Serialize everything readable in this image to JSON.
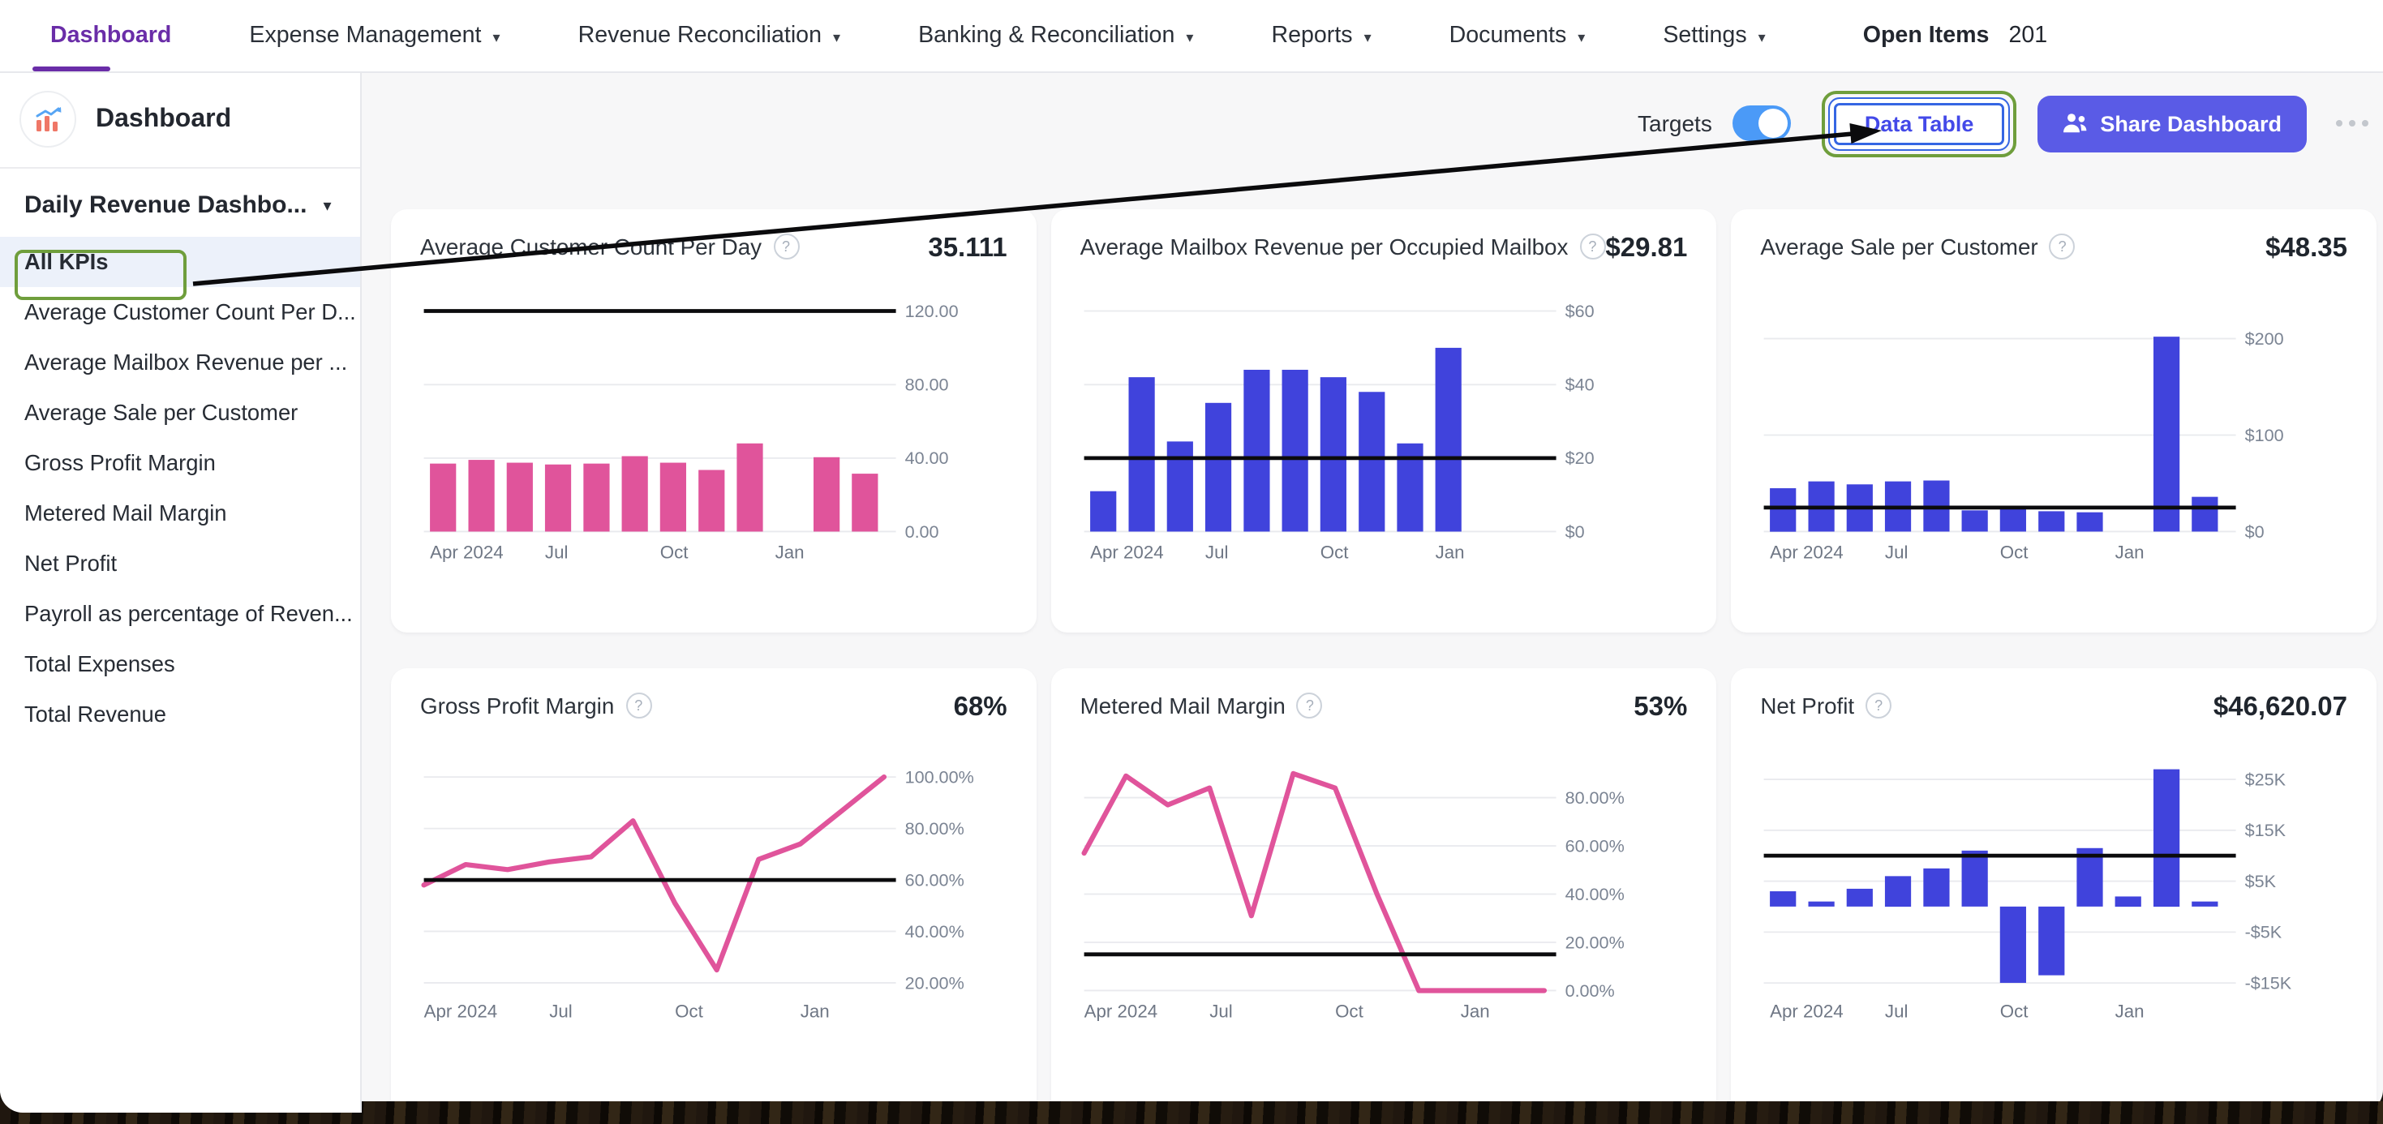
{
  "nav": {
    "tabs": [
      {
        "label": "Dashboard",
        "active": true,
        "dropdown": false
      },
      {
        "label": "Expense Management",
        "active": false,
        "dropdown": true
      },
      {
        "label": "Revenue Reconciliation",
        "active": false,
        "dropdown": true
      },
      {
        "label": "Banking & Reconciliation",
        "active": false,
        "dropdown": true
      },
      {
        "label": "Reports",
        "active": false,
        "dropdown": true
      },
      {
        "label": "Documents",
        "active": false,
        "dropdown": true
      },
      {
        "label": "Settings",
        "active": false,
        "dropdown": true
      }
    ],
    "open_items": {
      "label": "Open Items",
      "count": "201"
    }
  },
  "sidebar": {
    "title": "Dashboard",
    "selector_label": "Daily Revenue Dashbo...",
    "items": [
      {
        "label": "All KPIs",
        "selected": true
      },
      {
        "label": "Average Customer Count Per D...",
        "selected": false
      },
      {
        "label": "Average Mailbox Revenue per ...",
        "selected": false
      },
      {
        "label": "Average Sale per Customer",
        "selected": false
      },
      {
        "label": "Gross Profit Margin",
        "selected": false
      },
      {
        "label": "Metered Mail Margin",
        "selected": false
      },
      {
        "label": "Net Profit",
        "selected": false
      },
      {
        "label": "Payroll as percentage of Reven...",
        "selected": false
      },
      {
        "label": "Total Expenses",
        "selected": false
      },
      {
        "label": "Total Revenue",
        "selected": false
      }
    ]
  },
  "toolbar": {
    "targets_label": "Targets",
    "targets_on": true,
    "data_table_label": "Data Table",
    "share_label": "Share Dashboard"
  },
  "annotations": {
    "highlight_color": "#6F9E3C",
    "arrow_color": "#0B0B0D",
    "arrow_from": "all-kpis-sidebar-item",
    "arrow_to": "data-table-button",
    "highlighted": [
      "all-kpis-sidebar-item",
      "data-table-button"
    ]
  },
  "colors": {
    "accent_purple": "#6A2DA8",
    "pink_series": "#E0549B",
    "blue_series": "#4043DC",
    "share_button": "#5A5BE6",
    "toggle_on": "#4B9AF7",
    "data_table_text": "#4349E8",
    "target_line": "#0B0B0D",
    "page_bg": "#F7F7F8"
  },
  "chart_data": [
    {
      "type": "bar",
      "title": "Average Customer Count Per Day",
      "value": "35.111",
      "color": "#E0549B",
      "categories": [
        "Apr 2024",
        "May 2024",
        "Jun 2024",
        "Jul 2024",
        "Aug 2024",
        "Sep 2024",
        "Oct 2024",
        "Nov 2024",
        "Dec 2024",
        "Jan 2025",
        "Feb 2025",
        "Mar 2025"
      ],
      "values": [
        37,
        39,
        37.5,
        36.5,
        37,
        41,
        37.5,
        33.5,
        48,
        null,
        40.5,
        31.5
      ],
      "target": 120,
      "ylim": [
        0,
        126
      ],
      "yticks": [
        {
          "v": 0,
          "label": "0.00"
        },
        {
          "v": 40,
          "label": "40.00"
        },
        {
          "v": 80,
          "label": "80.00"
        },
        {
          "v": 120,
          "label": "120.00"
        }
      ],
      "xticks": [
        {
          "i": 0,
          "label": "Apr 2024"
        },
        {
          "i": 3,
          "label": "Jul"
        },
        {
          "i": 6,
          "label": "Oct"
        },
        {
          "i": 9,
          "label": "Jan"
        }
      ],
      "grid": true,
      "legend_position": "none"
    },
    {
      "type": "bar",
      "title": "Average Mailbox Revenue per Occupied Mailbox",
      "value": "$29.81",
      "color": "#4043DC",
      "categories": [
        "Apr 2024",
        "May 2024",
        "Jun 2024",
        "Jul 2024",
        "Aug 2024",
        "Sep 2024",
        "Oct 2024",
        "Nov 2024",
        "Dec 2024",
        "Jan 2025",
        "Feb 2025",
        "Mar 2025"
      ],
      "values": [
        11,
        42,
        24.5,
        35,
        44,
        44,
        42,
        38,
        24,
        50,
        null,
        null
      ],
      "target": 20,
      "ylim": [
        0,
        63
      ],
      "yticks": [
        {
          "v": 0,
          "label": "$0"
        },
        {
          "v": 20,
          "label": "$20"
        },
        {
          "v": 40,
          "label": "$40"
        },
        {
          "v": 60,
          "label": "$60"
        }
      ],
      "xticks": [
        {
          "i": 0,
          "label": "Apr 2024"
        },
        {
          "i": 3,
          "label": "Jul"
        },
        {
          "i": 6,
          "label": "Oct"
        },
        {
          "i": 9,
          "label": "Jan"
        }
      ],
      "grid": true,
      "legend_position": "none"
    },
    {
      "type": "bar",
      "title": "Average Sale per Customer",
      "value": "$48.35",
      "color": "#4043DC",
      "categories": [
        "Apr 2024",
        "May 2024",
        "Jun 2024",
        "Jul 2024",
        "Aug 2024",
        "Sep 2024",
        "Oct 2024",
        "Nov 2024",
        "Dec 2024",
        "Jan 2025",
        "Feb 2025",
        "Mar 2025"
      ],
      "values": [
        45,
        52,
        49,
        52,
        53,
        22,
        26,
        21,
        20,
        null,
        202,
        36
      ],
      "target": 25,
      "ylim": [
        0,
        240
      ],
      "yticks": [
        {
          "v": 0,
          "label": "$0"
        },
        {
          "v": 100,
          "label": "$100"
        },
        {
          "v": 200,
          "label": "$200"
        }
      ],
      "xticks": [
        {
          "i": 0,
          "label": "Apr 2024"
        },
        {
          "i": 3,
          "label": "Jul"
        },
        {
          "i": 6,
          "label": "Oct"
        },
        {
          "i": 9,
          "label": "Jan"
        }
      ],
      "grid": true,
      "legend_position": "none"
    },
    {
      "type": "line",
      "title": "Gross Profit Margin",
      "value": "68%",
      "color": "#E0549B",
      "categories": [
        "Apr 2024",
        "May 2024",
        "Jun 2024",
        "Jul 2024",
        "Aug 2024",
        "Sep 2024",
        "Oct 2024",
        "Nov 2024",
        "Dec 2024",
        "Jan 2025",
        "Feb 2025",
        "Mar 2025"
      ],
      "values": [
        58,
        66,
        64,
        67,
        69,
        83,
        51,
        25,
        68,
        74,
        87,
        100
      ],
      "target": 60,
      "ylim": [
        17,
        107
      ],
      "yticks": [
        {
          "v": 20,
          "label": "20.00%"
        },
        {
          "v": 40,
          "label": "40.00%"
        },
        {
          "v": 60,
          "label": "60.00%"
        },
        {
          "v": 80,
          "label": "80.00%"
        },
        {
          "v": 100,
          "label": "100.00%"
        }
      ],
      "xticks": [
        {
          "i": 0,
          "label": "Apr 2024"
        },
        {
          "i": 3,
          "label": "Jul"
        },
        {
          "i": 6,
          "label": "Oct"
        },
        {
          "i": 9,
          "label": "Jan"
        }
      ],
      "grid": true,
      "legend_position": "none"
    },
    {
      "type": "line",
      "title": "Metered Mail Margin",
      "value": "53%",
      "color": "#E0549B",
      "categories": [
        "Apr 2024",
        "May 2024",
        "Jun 2024",
        "Jul 2024",
        "Aug 2024",
        "Sep 2024",
        "Oct 2024",
        "Nov 2024",
        "Dec 2024",
        "Jan 2025",
        "Feb 2025",
        "Mar 2025"
      ],
      "values": [
        57,
        89,
        77,
        84,
        31,
        90,
        84,
        40,
        0,
        0,
        0,
        0
      ],
      "target": 15,
      "ylim": [
        0,
        96
      ],
      "yticks": [
        {
          "v": 0,
          "label": "0.00%"
        },
        {
          "v": 20,
          "label": "20.00%"
        },
        {
          "v": 40,
          "label": "40.00%"
        },
        {
          "v": 60,
          "label": "60.00%"
        },
        {
          "v": 80,
          "label": "80.00%"
        }
      ],
      "xticks": [
        {
          "i": 0,
          "label": "Apr 2024"
        },
        {
          "i": 3,
          "label": "Jul"
        },
        {
          "i": 6,
          "label": "Oct"
        },
        {
          "i": 9,
          "label": "Jan"
        }
      ],
      "grid": true,
      "legend_position": "none"
    },
    {
      "type": "bar",
      "title": "Net Profit",
      "value": "$46,620.07",
      "color": "#4043DC",
      "categories": [
        "Apr 2024",
        "May 2024",
        "Jun 2024",
        "Jul 2024",
        "Aug 2024",
        "Sep 2024",
        "Oct 2024",
        "Nov 2024",
        "Dec 2024",
        "Jan 2025",
        "Feb 2025",
        "Mar 2025"
      ],
      "values": [
        3000,
        1000,
        3500,
        6000,
        7500,
        11000,
        -15000,
        -13500,
        11500,
        2000,
        27000,
        1000
      ],
      "target": 10000,
      "ylim": [
        -16500,
        29000
      ],
      "yticks": [
        {
          "v": -15000,
          "label": "-$15K"
        },
        {
          "v": -5000,
          "label": "-$5K"
        },
        {
          "v": 5000,
          "label": "$5K"
        },
        {
          "v": 15000,
          "label": "$15K"
        },
        {
          "v": 25000,
          "label": "$25K"
        }
      ],
      "xticks": [
        {
          "i": 0,
          "label": "Apr 2024"
        },
        {
          "i": 3,
          "label": "Jul"
        },
        {
          "i": 6,
          "label": "Oct"
        },
        {
          "i": 9,
          "label": "Jan"
        }
      ],
      "grid": true,
      "legend_position": "none"
    }
  ]
}
